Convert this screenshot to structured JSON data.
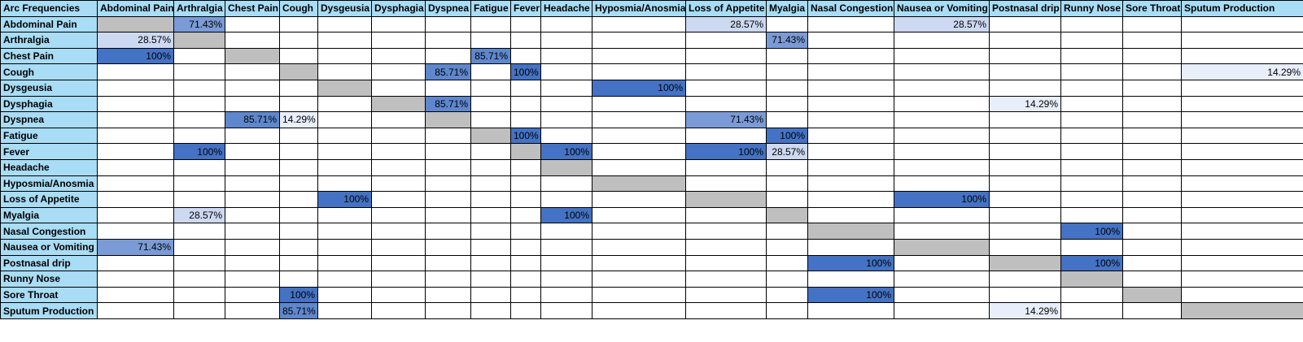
{
  "chart_data": {
    "type": "heatmap",
    "title": "Arc Frequencies",
    "columns": [
      "Abdominal Pain",
      "Arthralgia",
      "Chest Pain",
      "Cough",
      "Dysgeusia",
      "Dysphagia",
      "Dyspnea",
      "Fatigue",
      "Fever",
      "Headache",
      "Hyposmia/Anosmia",
      "Loss of Appetite",
      "Myalgia",
      "Nasal Congestion",
      "Nausea or Vomiting",
      "Postnasal drip",
      "Runny Nose",
      "Sore Throat",
      "Sputum Production"
    ],
    "rows": [
      "Abdominal Pain",
      "Arthralgia",
      "Chest Pain",
      "Cough",
      "Dysgeusia",
      "Dysphagia",
      "Dyspnea",
      "Fatigue",
      "Fever",
      "Headache",
      "Hyposmia/Anosmia",
      "Loss of Appetite",
      "Myalgia",
      "Nasal Congestion",
      "Nausea or Vomiting",
      "Postnasal drip",
      "Runny Nose",
      "Sore Throat",
      "Sputum Production"
    ],
    "value_unit": "%",
    "diagonal_shaded": true,
    "values": [
      [
        null,
        71.43,
        null,
        null,
        null,
        null,
        null,
        null,
        null,
        null,
        null,
        28.57,
        null,
        null,
        28.57,
        null,
        null,
        null,
        null
      ],
      [
        28.57,
        null,
        null,
        null,
        null,
        null,
        null,
        null,
        null,
        null,
        null,
        null,
        71.43,
        null,
        null,
        null,
        null,
        null,
        null
      ],
      [
        100,
        null,
        null,
        null,
        null,
        null,
        null,
        85.71,
        null,
        null,
        null,
        null,
        null,
        null,
        null,
        null,
        null,
        null,
        null
      ],
      [
        null,
        null,
        null,
        null,
        null,
        null,
        85.71,
        null,
        100,
        null,
        null,
        null,
        null,
        null,
        null,
        null,
        null,
        null,
        14.29
      ],
      [
        null,
        null,
        null,
        null,
        null,
        null,
        null,
        null,
        null,
        null,
        100,
        null,
        null,
        null,
        null,
        null,
        null,
        null,
        null
      ],
      [
        null,
        null,
        null,
        null,
        null,
        null,
        85.71,
        null,
        null,
        null,
        null,
        null,
        null,
        null,
        null,
        14.29,
        null,
        null,
        null
      ],
      [
        null,
        null,
        85.71,
        14.29,
        null,
        null,
        null,
        null,
        null,
        null,
        null,
        71.43,
        null,
        null,
        null,
        null,
        null,
        null,
        null
      ],
      [
        null,
        null,
        null,
        null,
        null,
        null,
        null,
        null,
        100,
        null,
        null,
        null,
        100,
        null,
        null,
        null,
        null,
        null,
        null
      ],
      [
        null,
        100,
        null,
        null,
        null,
        null,
        null,
        null,
        null,
        100,
        null,
        100,
        28.57,
        null,
        null,
        null,
        null,
        null,
        null
      ],
      [
        null,
        null,
        null,
        null,
        null,
        null,
        null,
        null,
        null,
        null,
        null,
        null,
        null,
        null,
        null,
        null,
        null,
        null,
        null
      ],
      [
        null,
        null,
        null,
        null,
        null,
        null,
        null,
        null,
        null,
        null,
        null,
        null,
        null,
        null,
        null,
        null,
        null,
        null,
        null
      ],
      [
        null,
        null,
        null,
        null,
        100,
        null,
        null,
        null,
        null,
        null,
        null,
        null,
        null,
        null,
        100,
        null,
        null,
        null,
        null
      ],
      [
        null,
        28.57,
        null,
        null,
        null,
        null,
        null,
        null,
        null,
        100,
        null,
        null,
        null,
        null,
        null,
        null,
        null,
        null,
        null
      ],
      [
        null,
        null,
        null,
        null,
        null,
        null,
        null,
        null,
        null,
        null,
        null,
        null,
        null,
        null,
        null,
        null,
        100,
        null,
        null
      ],
      [
        71.43,
        null,
        null,
        null,
        null,
        null,
        null,
        null,
        null,
        null,
        null,
        null,
        null,
        null,
        null,
        null,
        null,
        null,
        null
      ],
      [
        null,
        null,
        null,
        null,
        null,
        null,
        null,
        null,
        null,
        null,
        null,
        null,
        null,
        100,
        null,
        null,
        100,
        null,
        null
      ],
      [
        null,
        null,
        null,
        null,
        null,
        null,
        null,
        null,
        null,
        null,
        null,
        null,
        null,
        null,
        null,
        null,
        null,
        null,
        null
      ],
      [
        null,
        null,
        null,
        100,
        null,
        null,
        null,
        null,
        null,
        null,
        null,
        null,
        null,
        100,
        null,
        null,
        null,
        null,
        null
      ],
      [
        null,
        null,
        null,
        85.71,
        null,
        null,
        null,
        null,
        null,
        null,
        null,
        null,
        null,
        null,
        null,
        14.29,
        null,
        null,
        null
      ]
    ],
    "colors": {
      "header_bg": "#a9dcf5",
      "diagonal": "#bfbfbf",
      "scale_low": "#e8eefa",
      "scale_high": "#4472c4"
    }
  }
}
